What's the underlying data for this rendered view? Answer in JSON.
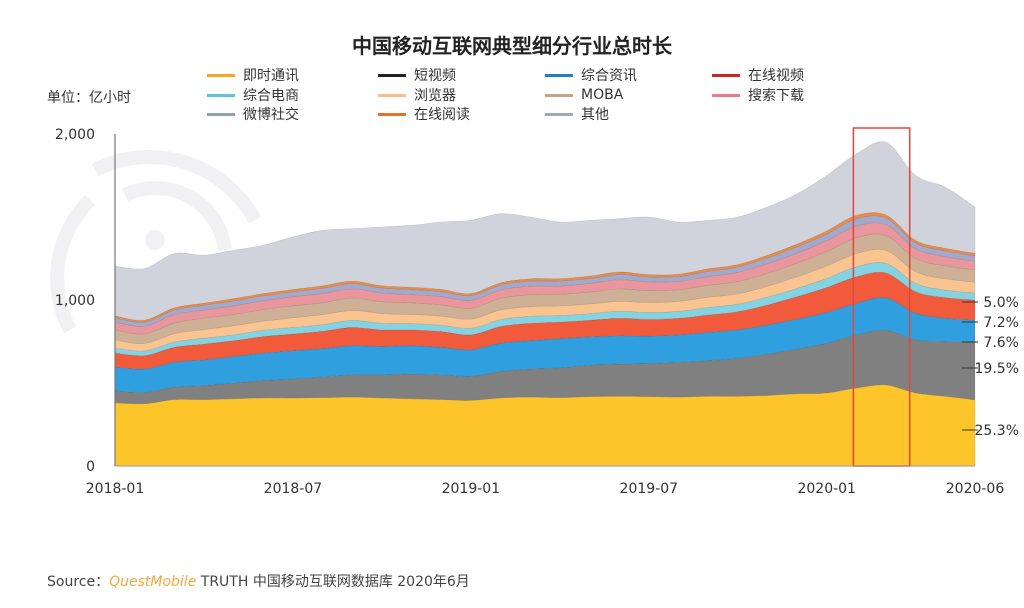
{
  "chart_data": {
    "type": "area",
    "stacked": true,
    "title": "中国移动互联网典型细分行业总时长",
    "unit_label": "单位：亿小时",
    "categories": [
      "2018-01",
      "2018-02",
      "2018-03",
      "2018-04",
      "2018-05",
      "2018-06",
      "2018-07",
      "2018-08",
      "2018-09",
      "2018-10",
      "2018-11",
      "2018-12",
      "2019-01",
      "2019-02",
      "2019-03",
      "2019-04",
      "2019-05",
      "2019-06",
      "2019-07",
      "2019-08",
      "2019-09",
      "2019-10",
      "2019-11",
      "2019-12",
      "2020-01",
      "2020-02",
      "2020-03",
      "2020-04",
      "2020-05",
      "2020-06"
    ],
    "x_tick_labels": [
      "2018-01",
      "2018-07",
      "2019-01",
      "2019-07",
      "2020-01",
      "2020-06"
    ],
    "y_tick_labels": [
      "0",
      "1,000",
      "2,000"
    ],
    "ylim": [
      0,
      2000
    ],
    "grid": false,
    "legend_position": "top",
    "series": [
      {
        "name": "即时通讯",
        "color": "#FDC52A",
        "legend_color": "#F5A623",
        "values": [
          380,
          375,
          400,
          400,
          405,
          410,
          410,
          412,
          415,
          410,
          405,
          400,
          395,
          410,
          415,
          412,
          418,
          420,
          418,
          415,
          420,
          420,
          425,
          435,
          440,
          470,
          488,
          440,
          420,
          398
        ]
      },
      {
        "name": "短视频",
        "color": "#808080",
        "legend_color": "#222222",
        "values": [
          72,
          70,
          75,
          85,
          95,
          105,
          115,
          125,
          135,
          140,
          150,
          150,
          145,
          160,
          170,
          180,
          190,
          195,
          200,
          210,
          215,
          230,
          250,
          270,
          300,
          320,
          330,
          320,
          330,
          349
        ]
      },
      {
        "name": "综合资讯",
        "color": "#2F9FDF",
        "legend_color": "#1F7FC8",
        "values": [
          144,
          140,
          150,
          155,
          160,
          165,
          170,
          170,
          175,
          170,
          170,
          165,
          160,
          170,
          170,
          175,
          170,
          170,
          165,
          165,
          170,
          170,
          175,
          180,
          185,
          190,
          195,
          160,
          140,
          133
        ]
      },
      {
        "name": "在线视频",
        "color": "#F25A3C",
        "legend_color": "#C8261E",
        "values": [
          85,
          80,
          90,
          95,
          95,
          100,
          100,
          105,
          110,
          100,
          95,
          95,
          90,
          100,
          105,
          100,
          100,
          105,
          100,
          100,
          105,
          110,
          120,
          135,
          150,
          160,
          150,
          130,
          125,
          120
        ]
      },
      {
        "name": "综合电商",
        "color": "#84D3E2",
        "legend_color": "#5EC3DD",
        "values": [
          30,
          28,
          32,
          35,
          35,
          38,
          40,
          40,
          42,
          40,
          38,
          38,
          40,
          42,
          42,
          40,
          40,
          42,
          42,
          42,
          45,
          45,
          48,
          50,
          55,
          60,
          58,
          50,
          45,
          42
        ]
      },
      {
        "name": "浏览器",
        "color": "#F9C48F",
        "legend_color": "#F7BE8A",
        "values": [
          48,
          45,
          50,
          52,
          55,
          55,
          58,
          60,
          60,
          58,
          55,
          55,
          55,
          58,
          58,
          58,
          58,
          60,
          60,
          60,
          62,
          62,
          65,
          70,
          75,
          80,
          78,
          70,
          68,
          65
        ]
      },
      {
        "name": "MOBA",
        "color": "#CDB095",
        "legend_color": "#C4A584",
        "values": [
          60,
          58,
          65,
          68,
          68,
          70,
          72,
          72,
          75,
          72,
          70,
          68,
          65,
          70,
          72,
          70,
          72,
          75,
          72,
          70,
          72,
          75,
          78,
          82,
          88,
          95,
          90,
          80,
          78,
          75
        ]
      },
      {
        "name": "搜索下载",
        "color": "#E9969C",
        "legend_color": "#E47F86",
        "values": [
          48,
          46,
          50,
          50,
          52,
          52,
          55,
          55,
          55,
          52,
          50,
          50,
          48,
          50,
          52,
          50,
          52,
          55,
          52,
          50,
          52,
          55,
          58,
          60,
          65,
          70,
          65,
          58,
          55,
          52
        ]
      },
      {
        "name": "微博社交",
        "color": "#A3A9CB",
        "legend_color": "#8EA3B8",
        "values": [
          25,
          25,
          28,
          28,
          30,
          30,
          30,
          32,
          32,
          30,
          30,
          30,
          28,
          30,
          30,
          30,
          30,
          32,
          30,
          30,
          32,
          32,
          35,
          38,
          40,
          45,
          40,
          35,
          35,
          33
        ]
      },
      {
        "name": "在线阅读",
        "color": "#F08A40",
        "legend_color": "#E8702A",
        "values": [
          12,
          12,
          13,
          13,
          14,
          14,
          14,
          15,
          15,
          14,
          14,
          14,
          13,
          14,
          14,
          14,
          14,
          15,
          14,
          14,
          15,
          15,
          16,
          17,
          18,
          20,
          18,
          16,
          16,
          15
        ]
      },
      {
        "name": "其他",
        "color": "#D1D3DC",
        "legend_color": "#9FA9BE",
        "values": [
          301,
          311,
          327,
          289,
          291,
          291,
          316,
          334,
          316,
          354,
          373,
          405,
          441,
          416,
          372,
          341,
          336,
          321,
          347,
          314,
          292,
          286,
          290,
          303,
          334,
          370,
          438,
          391,
          368,
          278
        ]
      }
    ],
    "annotations": [
      {
        "series": "综合电商",
        "text": "5.0%"
      },
      {
        "series": "在线视频",
        "text": "7.2%"
      },
      {
        "series": "综合资讯",
        "text": "7.6%"
      },
      {
        "series": "短视频",
        "text": "19.5%"
      },
      {
        "series": "即时通讯",
        "text": "25.3%"
      }
    ],
    "highlight": {
      "from": "2020-02",
      "to": "2020-04",
      "color": "#E0473A"
    }
  },
  "source": {
    "prefix": "Source：",
    "brand": "QuestMobile",
    "text": "TRUTH 中国移动互联网数据库 2020年6月"
  }
}
